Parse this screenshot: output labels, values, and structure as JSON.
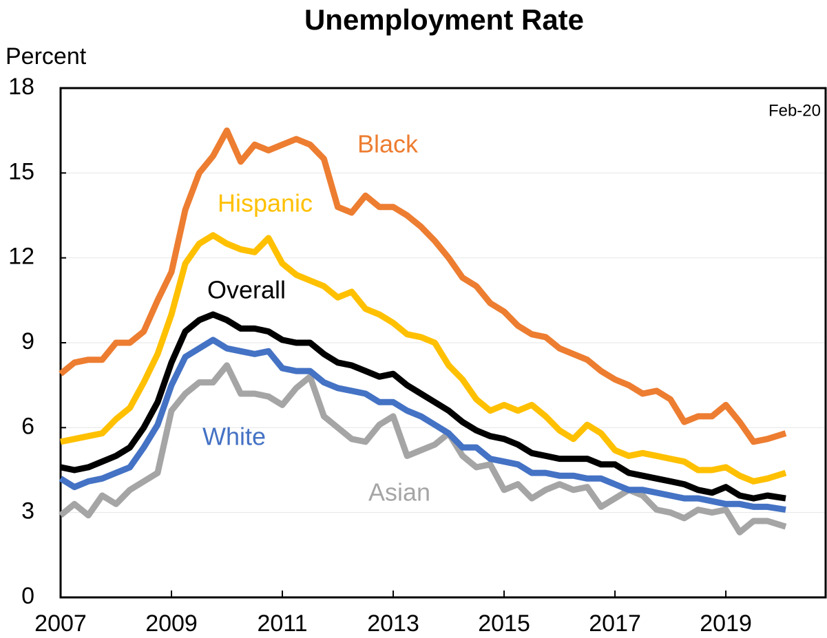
{
  "chart_data": {
    "type": "line",
    "title": "Unemployment Rate",
    "y_label": "Percent",
    "annotation": "Feb-20",
    "x": [
      2007,
      2007.25,
      2007.5,
      2007.75,
      2008,
      2008.25,
      2008.5,
      2008.75,
      2009,
      2009.25,
      2009.5,
      2009.75,
      2010,
      2010.25,
      2010.5,
      2010.75,
      2011,
      2011.25,
      2011.5,
      2011.75,
      2012,
      2012.25,
      2012.5,
      2012.75,
      2013,
      2013.25,
      2013.5,
      2013.75,
      2014,
      2014.25,
      2014.5,
      2014.75,
      2015,
      2015.25,
      2015.5,
      2015.75,
      2016,
      2016.25,
      2016.5,
      2016.75,
      2017,
      2017.25,
      2017.5,
      2017.75,
      2018,
      2018.25,
      2018.5,
      2018.75,
      2019,
      2019.25,
      2019.5,
      2019.75,
      2020.08
    ],
    "series": [
      {
        "name": "Black",
        "color": "#ED7D31",
        "values": [
          7.9,
          8.3,
          8.4,
          8.4,
          9.0,
          9.0,
          9.4,
          10.5,
          11.5,
          13.7,
          15.0,
          15.6,
          16.5,
          15.4,
          16.0,
          15.8,
          16.0,
          16.2,
          16.0,
          15.5,
          13.8,
          13.6,
          14.2,
          13.8,
          13.8,
          13.5,
          13.1,
          12.6,
          12.0,
          11.3,
          11.0,
          10.4,
          10.1,
          9.6,
          9.3,
          9.2,
          8.8,
          8.6,
          8.4,
          8.0,
          7.7,
          7.5,
          7.2,
          7.3,
          7.0,
          6.2,
          6.4,
          6.4,
          6.8,
          6.2,
          5.5,
          5.6,
          5.8
        ]
      },
      {
        "name": "Hispanic",
        "color": "#FFC000",
        "values": [
          5.5,
          5.6,
          5.7,
          5.8,
          6.3,
          6.7,
          7.6,
          8.6,
          10.0,
          11.8,
          12.5,
          12.8,
          12.5,
          12.3,
          12.2,
          12.7,
          11.8,
          11.4,
          11.2,
          11.0,
          10.6,
          10.8,
          10.2,
          10.0,
          9.7,
          9.3,
          9.2,
          9.0,
          8.2,
          7.7,
          7.0,
          6.6,
          6.8,
          6.6,
          6.8,
          6.4,
          5.9,
          5.6,
          6.1,
          5.8,
          5.2,
          5.0,
          5.1,
          5.0,
          4.9,
          4.8,
          4.5,
          4.5,
          4.6,
          4.3,
          4.1,
          4.2,
          4.4
        ]
      },
      {
        "name": "Asian",
        "color": "#A5A5A5",
        "values": [
          2.9,
          3.3,
          2.9,
          3.6,
          3.3,
          3.8,
          4.1,
          4.4,
          6.6,
          7.2,
          7.6,
          7.6,
          8.2,
          7.2,
          7.2,
          7.1,
          6.8,
          7.4,
          7.8,
          6.4,
          6.0,
          5.6,
          5.5,
          6.1,
          6.4,
          5.0,
          5.2,
          5.4,
          5.8,
          5.0,
          4.6,
          4.7,
          3.8,
          4.0,
          3.5,
          3.8,
          4.0,
          3.8,
          3.9,
          3.2,
          3.5,
          3.8,
          3.6,
          3.1,
          3.0,
          2.8,
          3.1,
          3.0,
          3.1,
          2.3,
          2.7,
          2.7,
          2.5
        ]
      },
      {
        "name": "White",
        "color": "#4472C4",
        "values": [
          4.2,
          3.9,
          4.1,
          4.2,
          4.4,
          4.6,
          5.3,
          6.1,
          7.5,
          8.5,
          8.8,
          9.1,
          8.8,
          8.7,
          8.6,
          8.7,
          8.1,
          8.0,
          8.0,
          7.6,
          7.4,
          7.3,
          7.2,
          6.9,
          6.9,
          6.6,
          6.4,
          6.1,
          5.8,
          5.3,
          5.3,
          4.9,
          4.8,
          4.7,
          4.4,
          4.4,
          4.3,
          4.3,
          4.2,
          4.2,
          4.0,
          3.8,
          3.8,
          3.7,
          3.6,
          3.5,
          3.5,
          3.4,
          3.3,
          3.3,
          3.2,
          3.2,
          3.1
        ]
      },
      {
        "name": "Overall",
        "color": "#000000",
        "values": [
          4.6,
          4.5,
          4.6,
          4.8,
          5.0,
          5.3,
          6.0,
          6.9,
          8.3,
          9.4,
          9.8,
          10.0,
          9.8,
          9.5,
          9.5,
          9.4,
          9.1,
          9.0,
          9.0,
          8.6,
          8.3,
          8.2,
          8.0,
          7.8,
          7.9,
          7.5,
          7.2,
          6.9,
          6.6,
          6.2,
          5.9,
          5.7,
          5.6,
          5.4,
          5.1,
          5.0,
          4.9,
          4.9,
          4.9,
          4.7,
          4.7,
          4.4,
          4.3,
          4.2,
          4.1,
          4.0,
          3.8,
          3.7,
          3.9,
          3.6,
          3.5,
          3.6,
          3.5
        ]
      }
    ],
    "xlim": [
      2007,
      2020.8
    ],
    "xticks": [
      2007,
      2009,
      2011,
      2013,
      2015,
      2017,
      2019
    ],
    "ylim": [
      0,
      18
    ],
    "yticks": [
      0,
      3,
      6,
      9,
      12,
      15,
      18
    ],
    "grid": true
  }
}
